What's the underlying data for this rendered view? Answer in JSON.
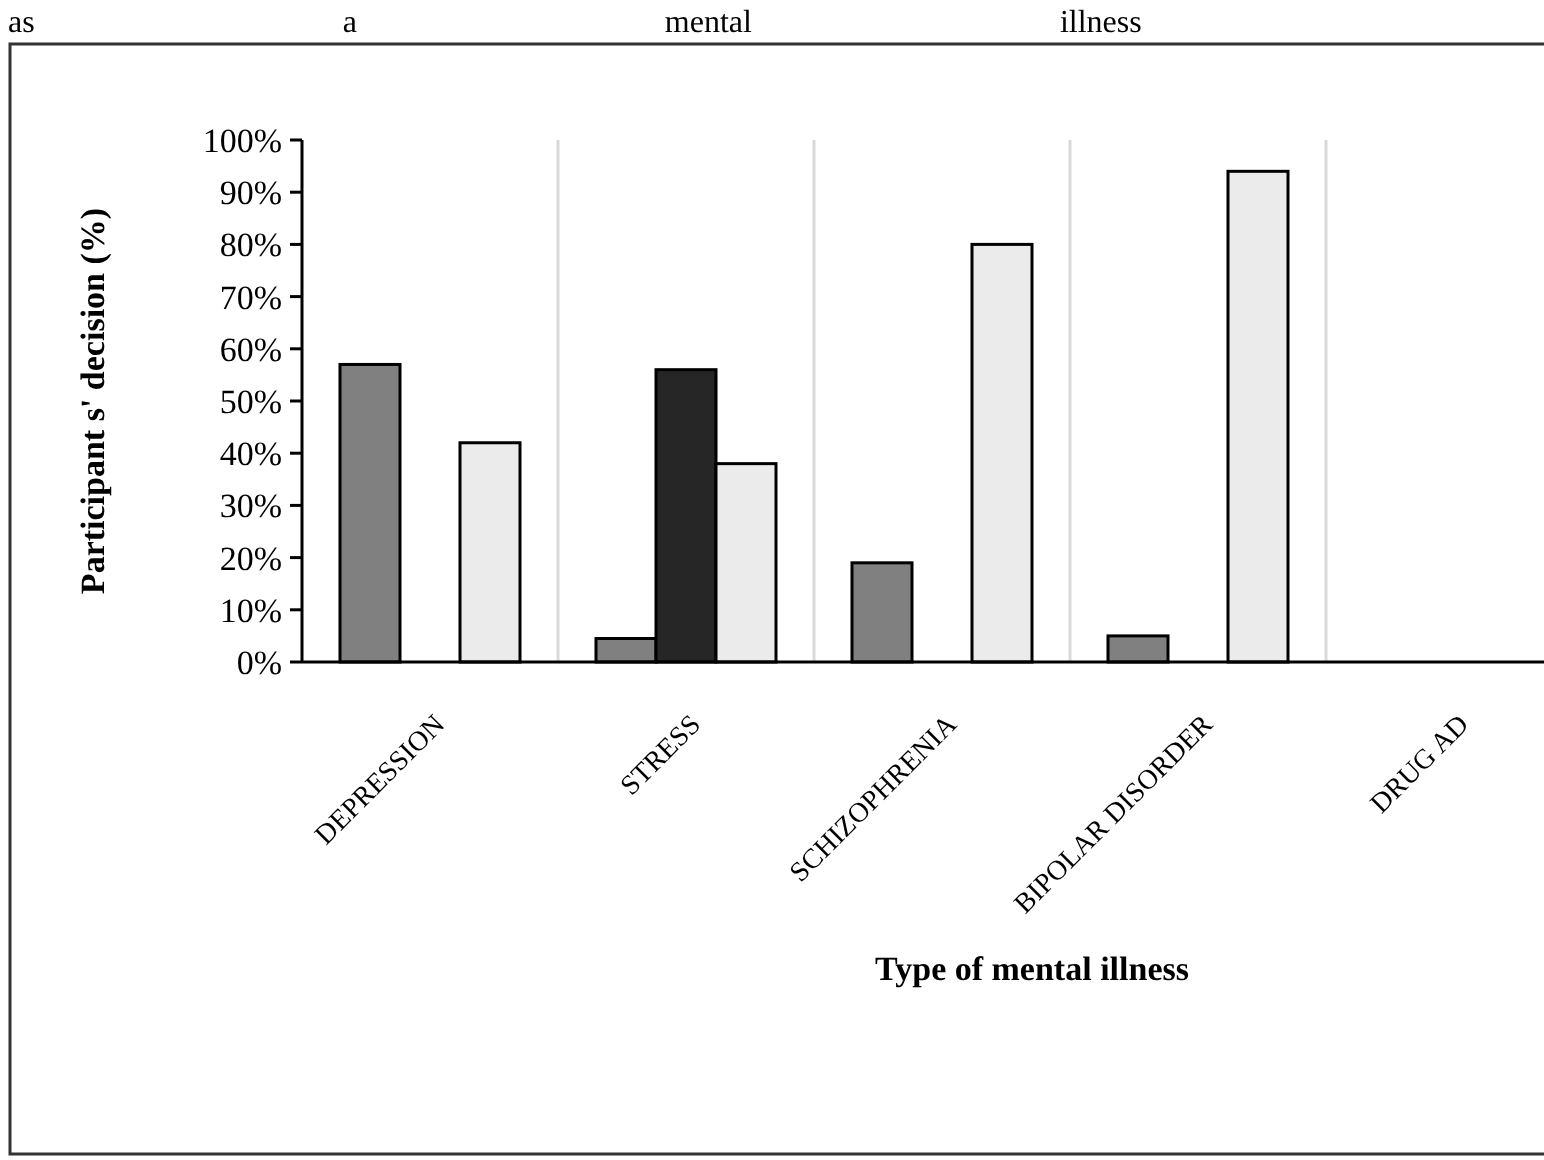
{
  "chart_data": {
    "type": "bar",
    "title": "as a mental illness",
    "xlabel": "Type of mental illness",
    "ylabel": "Participant s' decision  (%)",
    "categories": [
      "DEPRESSION",
      "STRESS",
      "SCHIZOPHRENIA",
      "BIPOLAR DISORDER",
      "DRUG AD"
    ],
    "series": [
      {
        "color": "#808080",
        "values": [
          57,
          4.5,
          19,
          5,
          null
        ]
      },
      {
        "color": "#262626",
        "values": [
          null,
          56,
          null,
          null,
          null
        ]
      },
      {
        "color": "#ebebeb",
        "values": [
          42,
          38,
          80,
          94,
          null
        ]
      }
    ],
    "ylim": [
      0,
      100
    ],
    "yticks": [
      {
        "value": 0,
        "label": "0%"
      },
      {
        "value": 10,
        "label": "10%"
      },
      {
        "value": 20,
        "label": "20%"
      },
      {
        "value": 30,
        "label": "30%"
      },
      {
        "value": 40,
        "label": "40%"
      },
      {
        "value": 50,
        "label": "50%"
      },
      {
        "value": 60,
        "label": "60%"
      },
      {
        "value": 70,
        "label": "70%"
      },
      {
        "value": 80,
        "label": "80%"
      },
      {
        "value": 90,
        "label": "90%"
      },
      {
        "value": 100,
        "label": "100%"
      }
    ],
    "grid": "x"
  }
}
